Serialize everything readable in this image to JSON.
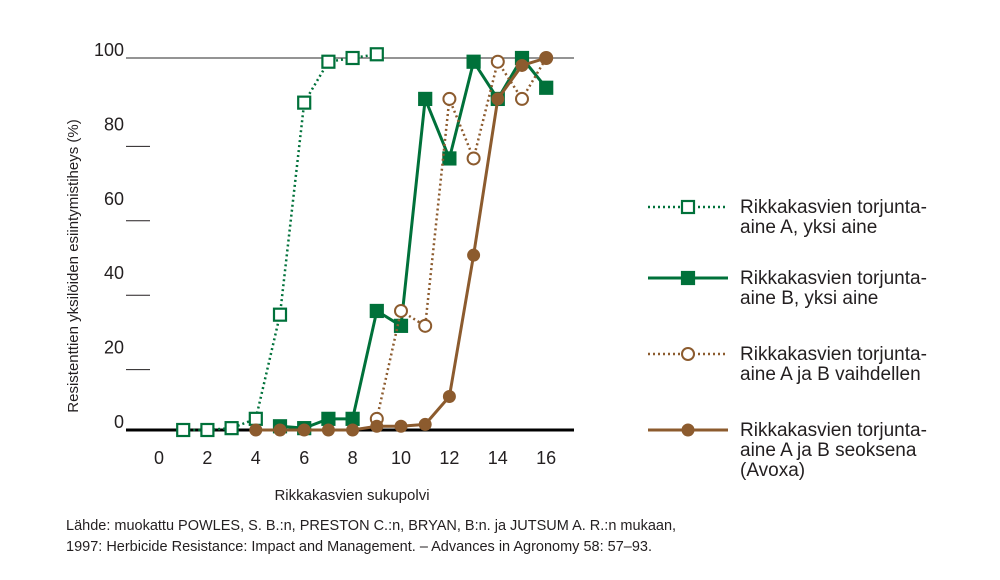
{
  "chart_data": {
    "type": "line",
    "title": "",
    "xlabel": "Rikkakasvien sukupolvi",
    "ylabel": "Resistenttien yksilöiden esiintymistiheys (%)",
    "xlim": [
      0,
      17
    ],
    "ylim": [
      0,
      100
    ],
    "x_ticks": [
      "0",
      "2",
      "4",
      "6",
      "8",
      "10",
      "12",
      "14",
      "16"
    ],
    "y_ticks": [
      "0",
      "20",
      "40",
      "60",
      "80",
      "100"
    ],
    "grid": false,
    "legend_position": "right",
    "series": [
      {
        "name": [
          "Rikkakasvien torjunta-",
          "aine A, yksi aine"
        ],
        "color": "#00713a",
        "line": "dotted",
        "marker": "square-open",
        "x": [
          1,
          2,
          3,
          4,
          5,
          6,
          7,
          8,
          9
        ],
        "y": [
          0,
          0,
          0.5,
          3,
          31,
          88,
          99,
          100,
          101
        ]
      },
      {
        "name": [
          "Rikkakasvien torjunta-",
          "aine B, yksi aine"
        ],
        "color": "#00713a",
        "line": "solid",
        "marker": "square-filled",
        "x": [
          5,
          6,
          7,
          8,
          9,
          10,
          11,
          12,
          13,
          14,
          15,
          16
        ],
        "y": [
          1,
          0.5,
          3,
          3,
          32,
          28,
          89,
          73,
          99,
          89,
          100,
          92
        ]
      },
      {
        "name": [
          "Rikkakasvien torjunta-",
          "aine A ja B vaihdellen"
        ],
        "color": "#8c5b2e",
        "line": "dotted",
        "marker": "circle-open",
        "x": [
          9,
          10,
          11,
          12,
          13,
          14,
          15,
          16
        ],
        "y": [
          3,
          32,
          28,
          89,
          73,
          99,
          89,
          100
        ]
      },
      {
        "name": [
          "Rikkakasvien torjunta-",
          "aine A ja B seoksena",
          "(Avoxa)"
        ],
        "color": "#8c5b2e",
        "line": "solid",
        "marker": "circle-filled",
        "x": [
          4,
          5,
          6,
          7,
          8,
          9,
          10,
          11,
          12,
          13,
          14,
          15,
          16
        ],
        "y": [
          0,
          0,
          0,
          0,
          0,
          1,
          1,
          1.5,
          9,
          47,
          89,
          98,
          100
        ]
      }
    ]
  },
  "source": {
    "line1": "Lähde: muokattu POWLES, S. B.:n, PRESTON C.:n, BRYAN, B:n. ja JUTSUM A. R.:n mukaan,",
    "line2": "1997: Herbicide Resistance: Impact and Management. – Advances in Agronomy 58: 57–93."
  }
}
